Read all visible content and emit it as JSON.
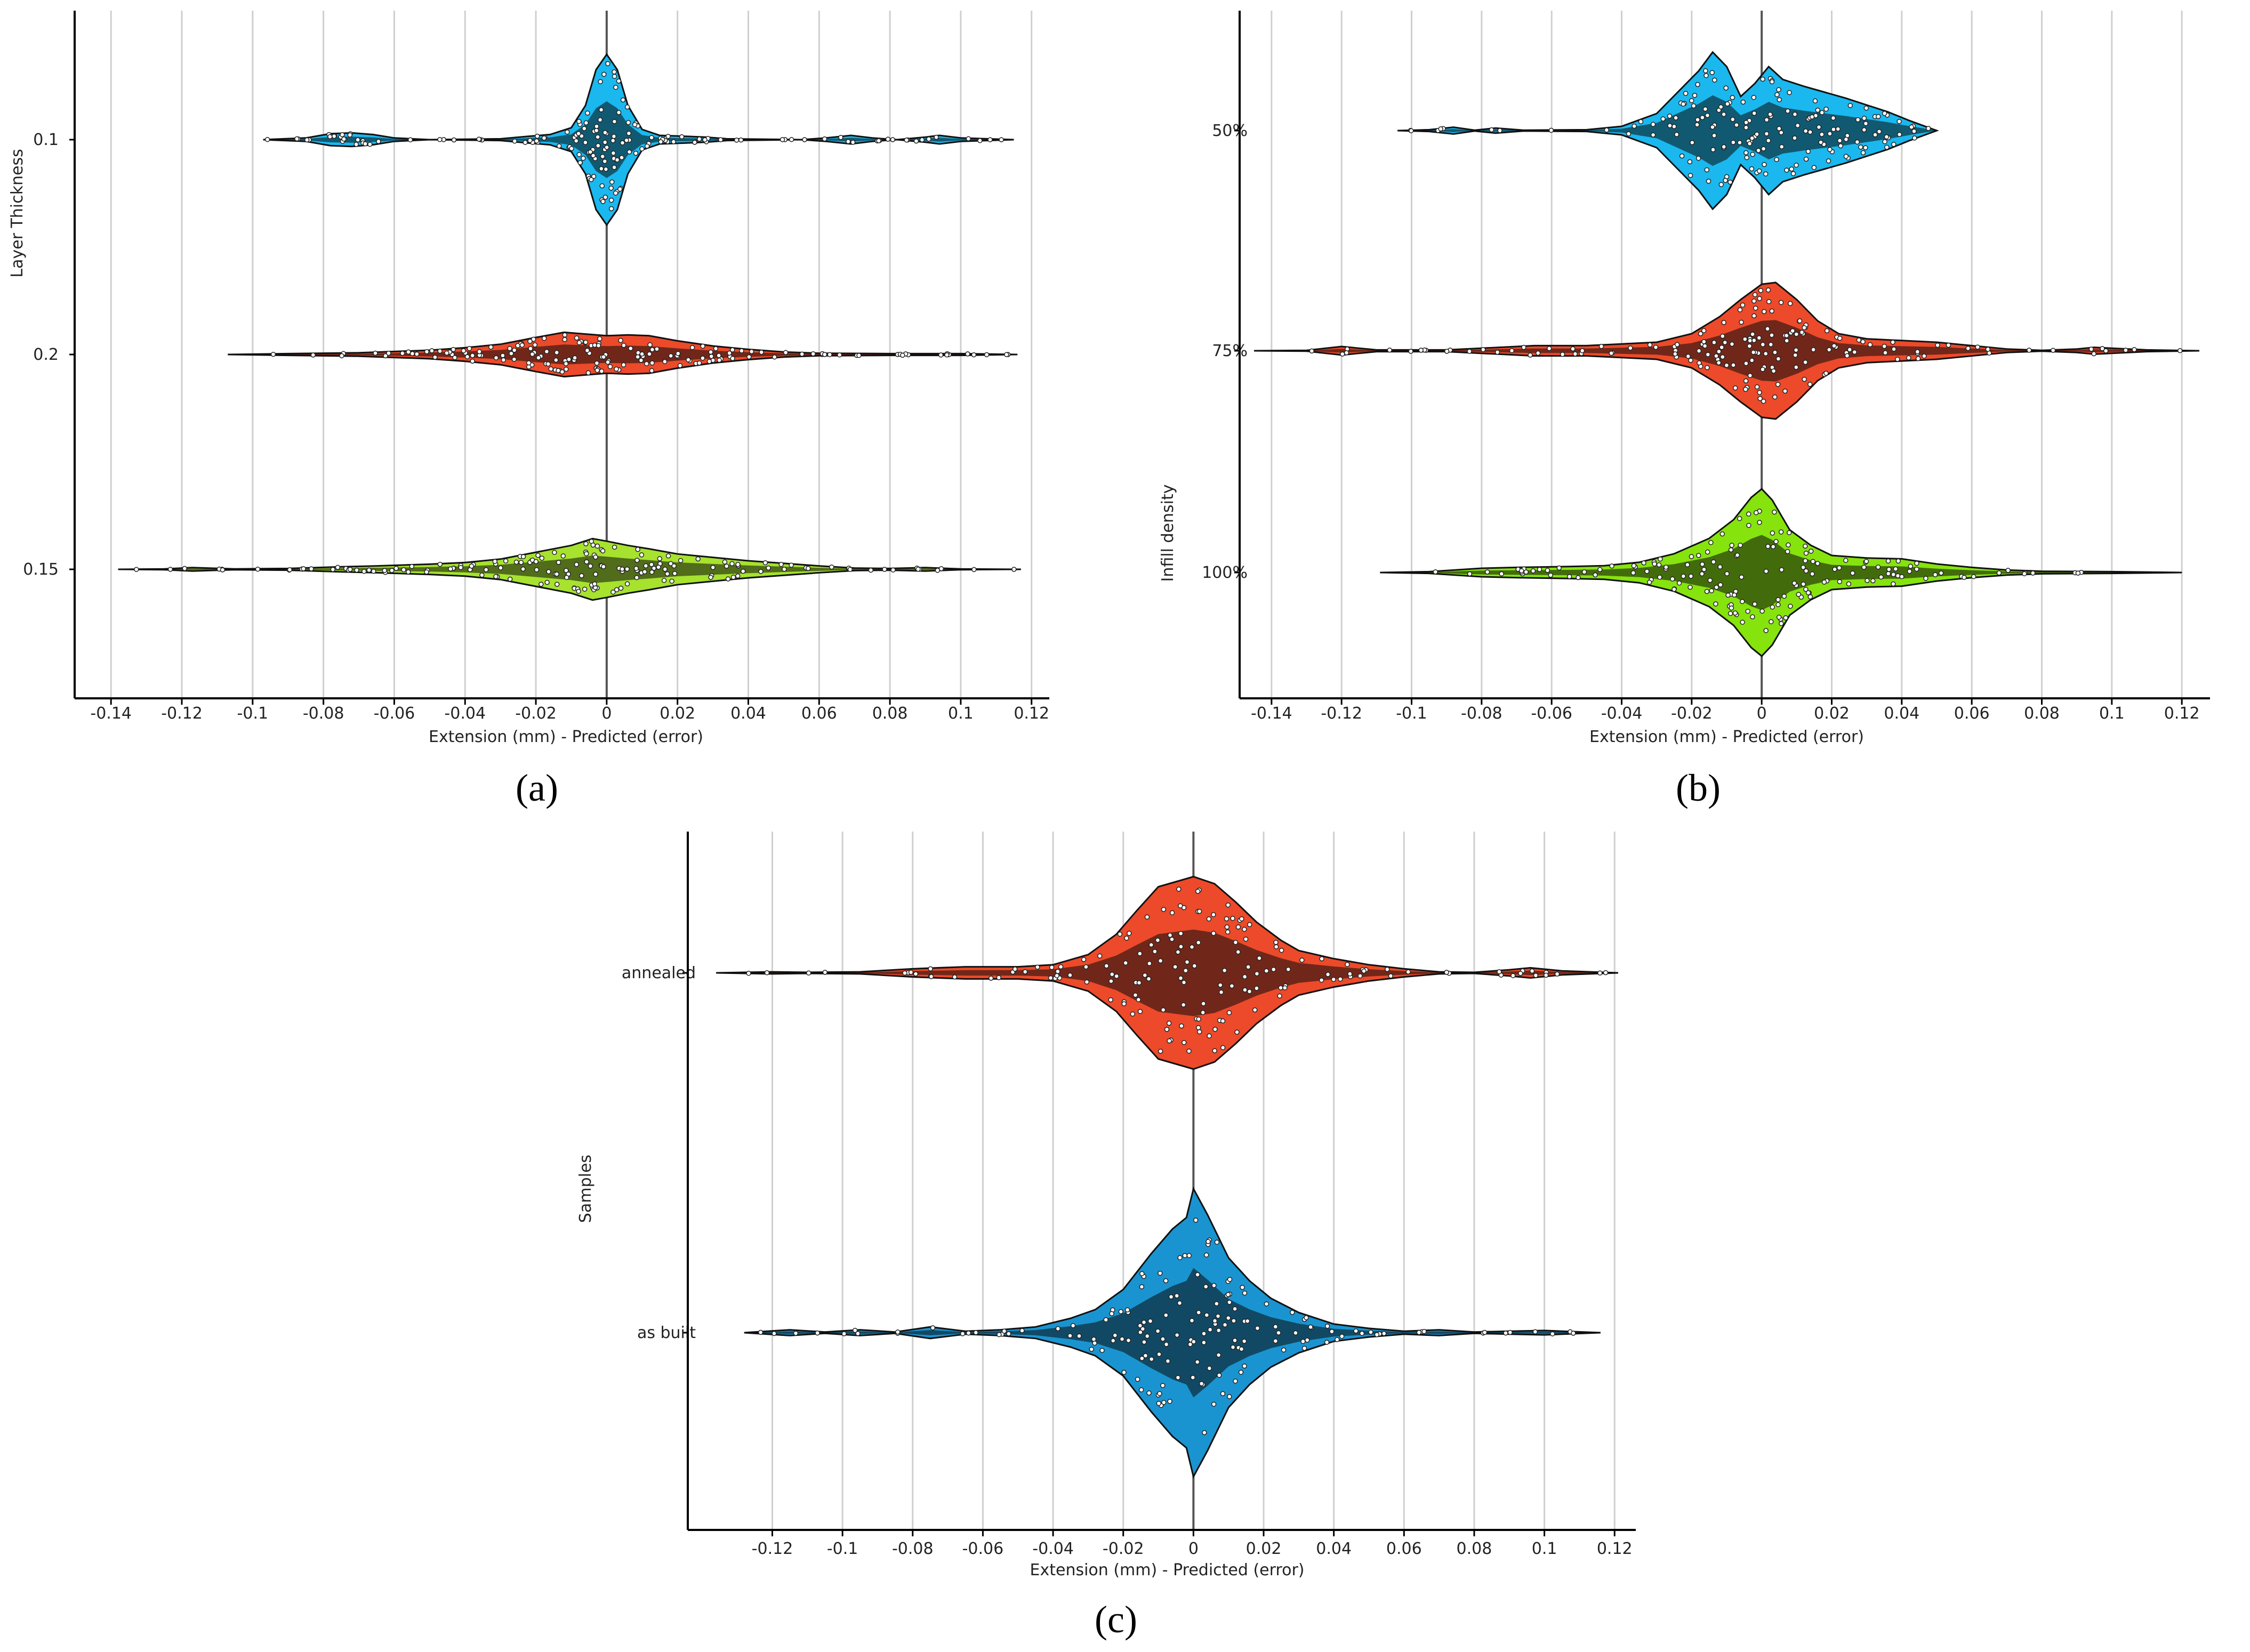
{
  "chart_data": [
    {
      "panel_label": "(a)",
      "type": "violin",
      "ylabel": "Layer Thickness",
      "xlabel": "Extension (mm) - Predicted (error)",
      "xlim": [
        -0.145,
        0.122
      ],
      "xticks": [
        "-0.14",
        "-0.12",
        "-0.1",
        "-0.08",
        "-0.06",
        "-0.04",
        "-0.02",
        "0",
        "0.02",
        "0.04",
        "0.06",
        "0.08",
        "0.1",
        "0.12"
      ],
      "xtick_values": [
        -0.14,
        -0.12,
        -0.1,
        -0.08,
        -0.06,
        -0.04,
        -0.02,
        0,
        0.02,
        0.04,
        0.06,
        0.08,
        0.1,
        0.12
      ],
      "grid": true,
      "categories": [
        "0.1",
        "0.2",
        "0.15"
      ],
      "series": [
        {
          "category": "0.1",
          "color": "#1ab8ee",
          "range": [
            -0.097,
            0.115
          ],
          "density": [
            [
              -0.097,
              0.0
            ],
            [
              -0.085,
              0.02
            ],
            [
              -0.078,
              0.07
            ],
            [
              -0.072,
              0.08
            ],
            [
              -0.066,
              0.06
            ],
            [
              -0.06,
              0.02
            ],
            [
              -0.05,
              0.0
            ],
            [
              -0.03,
              0.01
            ],
            [
              -0.022,
              0.04
            ],
            [
              -0.016,
              0.06
            ],
            [
              -0.01,
              0.14
            ],
            [
              -0.006,
              0.4
            ],
            [
              -0.003,
              0.82
            ],
            [
              0.0,
              1.0
            ],
            [
              0.003,
              0.82
            ],
            [
              0.006,
              0.4
            ],
            [
              0.01,
              0.12
            ],
            [
              0.015,
              0.05
            ],
            [
              0.022,
              0.04
            ],
            [
              0.028,
              0.03
            ],
            [
              0.034,
              0.01
            ],
            [
              0.055,
              0.0
            ],
            [
              0.062,
              0.02
            ],
            [
              0.069,
              0.05
            ],
            [
              0.075,
              0.02
            ],
            [
              0.082,
              0.0
            ],
            [
              0.09,
              0.03
            ],
            [
              0.094,
              0.05
            ],
            [
              0.1,
              0.02
            ],
            [
              0.115,
              0.0
            ]
          ]
        },
        {
          "category": "0.2",
          "color": "#ec4a2a",
          "range": [
            -0.107,
            0.116
          ],
          "density": [
            [
              -0.107,
              0.0
            ],
            [
              -0.09,
              0.01
            ],
            [
              -0.07,
              0.02
            ],
            [
              -0.05,
              0.05
            ],
            [
              -0.04,
              0.08
            ],
            [
              -0.03,
              0.12
            ],
            [
              -0.02,
              0.2
            ],
            [
              -0.012,
              0.26
            ],
            [
              -0.006,
              0.24
            ],
            [
              0.0,
              0.22
            ],
            [
              0.006,
              0.23
            ],
            [
              0.012,
              0.22
            ],
            [
              0.02,
              0.16
            ],
            [
              0.03,
              0.1
            ],
            [
              0.04,
              0.06
            ],
            [
              0.05,
              0.03
            ],
            [
              0.06,
              0.015
            ],
            [
              0.08,
              0.01
            ],
            [
              0.1,
              0.01
            ],
            [
              0.116,
              0.0
            ]
          ]
        },
        {
          "category": "0.15",
          "color": "#a6e22e",
          "range": [
            -0.138,
            0.117
          ],
          "density": [
            [
              -0.138,
              0.0
            ],
            [
              -0.125,
              0.005
            ],
            [
              -0.117,
              0.02
            ],
            [
              -0.105,
              0.005
            ],
            [
              -0.09,
              0.01
            ],
            [
              -0.075,
              0.03
            ],
            [
              -0.065,
              0.04
            ],
            [
              -0.05,
              0.06
            ],
            [
              -0.04,
              0.08
            ],
            [
              -0.03,
              0.12
            ],
            [
              -0.02,
              0.2
            ],
            [
              -0.01,
              0.28
            ],
            [
              -0.004,
              0.36
            ],
            [
              0.0,
              0.33
            ],
            [
              0.006,
              0.28
            ],
            [
              0.012,
              0.24
            ],
            [
              0.02,
              0.18
            ],
            [
              0.03,
              0.14
            ],
            [
              0.04,
              0.1
            ],
            [
              0.05,
              0.07
            ],
            [
              0.06,
              0.04
            ],
            [
              0.07,
              0.015
            ],
            [
              0.08,
              0.01
            ],
            [
              0.09,
              0.02
            ],
            [
              0.1,
              0.005
            ],
            [
              0.117,
              0.0
            ]
          ]
        }
      ]
    },
    {
      "panel_label": "(b)",
      "type": "violin",
      "ylabel": "Infill density",
      "xlabel": "Extension (mm) - Predicted (error)",
      "xlim": [
        -0.145,
        0.125
      ],
      "xticks": [
        "-0.14",
        "-0.12",
        "-0.1",
        "-0.08",
        "-0.06",
        "-0.04",
        "-0.02",
        "0",
        "0.02",
        "0.04",
        "0.06",
        "0.08",
        "0.1",
        "0.12"
      ],
      "xtick_values": [
        -0.14,
        -0.12,
        -0.1,
        -0.08,
        -0.06,
        -0.04,
        -0.02,
        0,
        0.02,
        0.04,
        0.06,
        0.08,
        0.1,
        0.12
      ],
      "grid": true,
      "categories": [
        "50%",
        "75%",
        "100%"
      ],
      "series": [
        {
          "category": "50%",
          "color": "#1ab8ee",
          "range": [
            -0.104,
            0.05
          ],
          "density": [
            [
              -0.104,
              0.0
            ],
            [
              -0.095,
              0.01
            ],
            [
              -0.088,
              0.04
            ],
            [
              -0.082,
              0.005
            ],
            [
              -0.076,
              0.03
            ],
            [
              -0.068,
              0.005
            ],
            [
              -0.05,
              0.01
            ],
            [
              -0.04,
              0.05
            ],
            [
              -0.03,
              0.2
            ],
            [
              -0.024,
              0.45
            ],
            [
              -0.018,
              0.7
            ],
            [
              -0.014,
              0.92
            ],
            [
              -0.01,
              0.75
            ],
            [
              -0.006,
              0.4
            ],
            [
              -0.002,
              0.55
            ],
            [
              0.002,
              0.75
            ],
            [
              0.006,
              0.6
            ],
            [
              0.012,
              0.52
            ],
            [
              0.018,
              0.45
            ],
            [
              0.024,
              0.38
            ],
            [
              0.03,
              0.3
            ],
            [
              0.036,
              0.22
            ],
            [
              0.042,
              0.12
            ],
            [
              0.05,
              0.0
            ]
          ]
        },
        {
          "category": "75%",
          "color": "#ec4a2a",
          "range": [
            -0.145,
            0.125
          ],
          "density": [
            [
              -0.145,
              0.0
            ],
            [
              -0.13,
              0.005
            ],
            [
              -0.12,
              0.05
            ],
            [
              -0.11,
              0.01
            ],
            [
              -0.09,
              0.01
            ],
            [
              -0.075,
              0.04
            ],
            [
              -0.065,
              0.06
            ],
            [
              -0.05,
              0.06
            ],
            [
              -0.04,
              0.08
            ],
            [
              -0.03,
              0.1
            ],
            [
              -0.02,
              0.2
            ],
            [
              -0.012,
              0.4
            ],
            [
              -0.006,
              0.6
            ],
            [
              0.0,
              0.78
            ],
            [
              0.004,
              0.8
            ],
            [
              0.01,
              0.6
            ],
            [
              0.016,
              0.35
            ],
            [
              0.022,
              0.2
            ],
            [
              0.03,
              0.14
            ],
            [
              0.04,
              0.12
            ],
            [
              0.05,
              0.1
            ],
            [
              0.06,
              0.06
            ],
            [
              0.07,
              0.02
            ],
            [
              0.08,
              0.005
            ],
            [
              0.09,
              0.02
            ],
            [
              0.095,
              0.04
            ],
            [
              0.1,
              0.03
            ],
            [
              0.11,
              0.01
            ],
            [
              0.125,
              0.0
            ]
          ]
        },
        {
          "category": "100%",
          "color": "#86e30e",
          "range": [
            -0.109,
            0.12
          ],
          "density": [
            [
              -0.109,
              0.0
            ],
            [
              -0.095,
              0.01
            ],
            [
              -0.08,
              0.05
            ],
            [
              -0.07,
              0.06
            ],
            [
              -0.055,
              0.07
            ],
            [
              -0.045,
              0.08
            ],
            [
              -0.035,
              0.12
            ],
            [
              -0.025,
              0.22
            ],
            [
              -0.015,
              0.4
            ],
            [
              -0.008,
              0.62
            ],
            [
              -0.003,
              0.88
            ],
            [
              0.0,
              0.98
            ],
            [
              0.003,
              0.85
            ],
            [
              0.008,
              0.5
            ],
            [
              0.014,
              0.32
            ],
            [
              0.02,
              0.2
            ],
            [
              0.03,
              0.17
            ],
            [
              0.04,
              0.16
            ],
            [
              0.05,
              0.1
            ],
            [
              0.06,
              0.06
            ],
            [
              0.07,
              0.03
            ],
            [
              0.08,
              0.015
            ],
            [
              0.1,
              0.01
            ],
            [
              0.12,
              0.0
            ]
          ]
        }
      ]
    },
    {
      "panel_label": "(c)",
      "type": "violin",
      "ylabel": "Samples",
      "xlabel": "Extension (mm) - Predicted (error)",
      "xlim": [
        -0.138,
        0.123
      ],
      "xticks": [
        "-0.12",
        "-0.1",
        "-0.08",
        "-0.06",
        "-0.04",
        "-0.02",
        "0",
        "0.02",
        "0.04",
        "0.06",
        "0.08",
        "0.1",
        "0.12"
      ],
      "xtick_values": [
        -0.12,
        -0.1,
        -0.08,
        -0.06,
        -0.04,
        -0.02,
        0,
        0.02,
        0.04,
        0.06,
        0.08,
        0.1,
        0.12
      ],
      "grid": true,
      "categories": [
        "annealed",
        "as built"
      ],
      "series": [
        {
          "category": "annealed",
          "color": "#ec4a2a",
          "range": [
            -0.136,
            0.121
          ],
          "density": [
            [
              -0.136,
              0.0
            ],
            [
              -0.12,
              0.01
            ],
            [
              -0.11,
              0.005
            ],
            [
              -0.095,
              0.01
            ],
            [
              -0.08,
              0.04
            ],
            [
              -0.065,
              0.06
            ],
            [
              -0.05,
              0.06
            ],
            [
              -0.04,
              0.08
            ],
            [
              -0.03,
              0.18
            ],
            [
              -0.022,
              0.38
            ],
            [
              -0.016,
              0.62
            ],
            [
              -0.01,
              0.85
            ],
            [
              -0.005,
              0.9
            ],
            [
              0.0,
              0.95
            ],
            [
              0.006,
              0.88
            ],
            [
              0.012,
              0.7
            ],
            [
              0.018,
              0.5
            ],
            [
              0.025,
              0.32
            ],
            [
              0.03,
              0.22
            ],
            [
              0.04,
              0.14
            ],
            [
              0.05,
              0.08
            ],
            [
              0.06,
              0.04
            ],
            [
              0.07,
              0.01
            ],
            [
              0.08,
              0.005
            ],
            [
              0.09,
              0.03
            ],
            [
              0.096,
              0.05
            ],
            [
              0.105,
              0.02
            ],
            [
              0.121,
              0.0
            ]
          ]
        },
        {
          "category": "as built",
          "color": "#1a94d0",
          "range": [
            -0.128,
            0.116
          ],
          "density": [
            [
              -0.128,
              0.0
            ],
            [
              -0.115,
              0.02
            ],
            [
              -0.105,
              0.005
            ],
            [
              -0.095,
              0.02
            ],
            [
              -0.085,
              0.005
            ],
            [
              -0.075,
              0.04
            ],
            [
              -0.065,
              0.01
            ],
            [
              -0.055,
              0.02
            ],
            [
              -0.045,
              0.04
            ],
            [
              -0.035,
              0.1
            ],
            [
              -0.028,
              0.16
            ],
            [
              -0.02,
              0.3
            ],
            [
              -0.012,
              0.55
            ],
            [
              -0.006,
              0.72
            ],
            [
              -0.002,
              0.8
            ],
            [
              0.0,
              1.0
            ],
            [
              0.004,
              0.82
            ],
            [
              0.01,
              0.52
            ],
            [
              0.016,
              0.36
            ],
            [
              0.022,
              0.24
            ],
            [
              0.03,
              0.14
            ],
            [
              0.04,
              0.06
            ],
            [
              0.05,
              0.03
            ],
            [
              0.06,
              0.01
            ],
            [
              0.07,
              0.02
            ],
            [
              0.08,
              0.005
            ],
            [
              0.09,
              0.01
            ],
            [
              0.1,
              0.015
            ],
            [
              0.116,
              0.0
            ]
          ]
        }
      ]
    }
  ]
}
